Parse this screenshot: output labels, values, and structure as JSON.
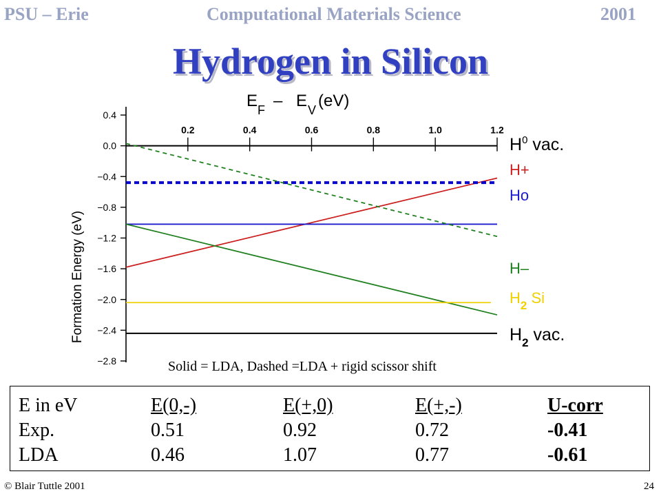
{
  "header": {
    "left": "PSU – Erie",
    "center": "Computational Materials Science",
    "right": "2001"
  },
  "title": "Hydrogen in Silicon",
  "chart_data": {
    "type": "line",
    "top_axis_label": "E  – E (eV)",
    "top_axis_label_parts": [
      "E",
      "F",
      "–",
      "E",
      "V",
      "(eV)"
    ],
    "x_ticks": [
      "0.2",
      "0.4",
      "0.6",
      "0.8",
      "1.0",
      "1.2"
    ],
    "x_tick_values": [
      0.2,
      0.4,
      0.6,
      0.8,
      1.0,
      1.2
    ],
    "xlim": [
      0.0,
      1.2
    ],
    "ylabel": "Formation Energy (eV)",
    "y_ticks": [
      "0.4",
      "0.0",
      "−0.4",
      "−0.8",
      "−1.2",
      "−1.6",
      "−2.0",
      "−2.4",
      "−2.8"
    ],
    "y_tick_values": [
      0.4,
      0.0,
      -0.4,
      -0.8,
      -1.2,
      -1.6,
      -2.0,
      -2.4,
      -2.8
    ],
    "ylim": [
      -2.8,
      0.4
    ],
    "grid": false,
    "series": [
      {
        "name": "H0 vac.",
        "label": "H",
        "sup": "0",
        "suffix": " vac.",
        "color": "#000000",
        "style": "solid",
        "x": [
          0.0,
          1.2
        ],
        "y": [
          0.0,
          0.0
        ]
      },
      {
        "name": "H+",
        "label": "H+",
        "color": "#cc2020",
        "style": "solid",
        "x": [
          0.0,
          1.2
        ],
        "y": [
          -1.58,
          -0.42
        ]
      },
      {
        "name": "H+ (dashed)",
        "label": "",
        "color": "#0000cc",
        "style": "dashed",
        "x": [
          0.0,
          1.2
        ],
        "y": [
          -0.48,
          -0.48
        ]
      },
      {
        "name": "Ho",
        "label": "Ho",
        "color": "#1a1acc",
        "style": "solid",
        "x": [
          0.0,
          1.2
        ],
        "y": [
          -1.02,
          -1.02
        ]
      },
      {
        "name": "H− (dashed)",
        "label": "",
        "color": "#208020",
        "style": "dashed",
        "x": [
          0.0,
          1.2
        ],
        "y": [
          0.03,
          -1.18
        ]
      },
      {
        "name": "H−",
        "label": "H–",
        "color": "#208020",
        "style": "solid",
        "x": [
          0.0,
          1.2
        ],
        "y": [
          -1.02,
          -2.2
        ]
      },
      {
        "name": "H2 Si",
        "label": "H",
        "sub": "2",
        "suffix": " Si",
        "color": "#f0d000",
        "style": "solid",
        "x": [
          0.0,
          1.18
        ],
        "y": [
          -2.04,
          -2.04
        ]
      },
      {
        "name": "H2 vac.",
        "label": "H",
        "sub": "2",
        "suffix": " vac.",
        "color": "#000000",
        "style": "solid",
        "x": [
          0.0,
          1.2
        ],
        "y": [
          -2.44,
          -2.44
        ]
      }
    ]
  },
  "caption": "Solid = LDA, Dashed =LDA + rigid scissor shift",
  "table": {
    "header": [
      "E in eV",
      "E(0,-)",
      "E(+,0) ",
      "E(+,-) ",
      "U-corr"
    ],
    "rows": [
      [
        "Exp.",
        "0.51",
        "0.92",
        "0.72",
        "-0.41"
      ],
      [
        "LDA",
        "0.46",
        "1.07",
        "0.77",
        "-0.61"
      ]
    ]
  },
  "footer": {
    "left": "© Blair Tuttle 2001",
    "right": "24"
  }
}
